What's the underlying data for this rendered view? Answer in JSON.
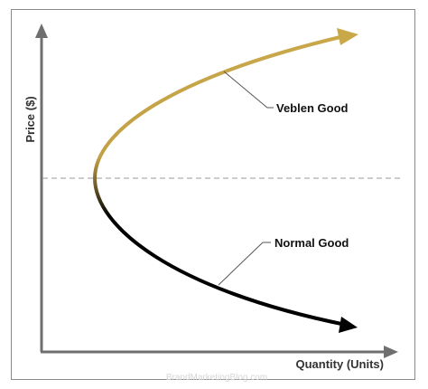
{
  "diagram": {
    "y_axis_label": "Price ($)",
    "x_axis_label": "Quantity (Units)",
    "curves": [
      {
        "label": "Veblen Good",
        "color": "#c9a84a"
      },
      {
        "label": "Normal Good",
        "color": "#000000"
      }
    ],
    "watermark": "BrandMarketingBlog.com",
    "colors": {
      "axis": "#6f6f6f",
      "dashed_line": "#9a9a9a",
      "gold": "#c9a84a",
      "black": "#000000",
      "frame": "#8a8a8a"
    }
  }
}
